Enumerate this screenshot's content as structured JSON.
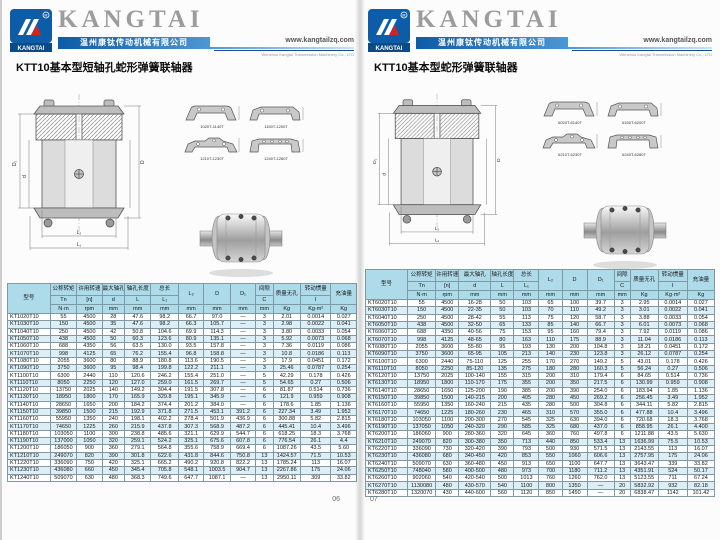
{
  "brand": {
    "logo_text": "KANGTAI",
    "name": "KANGTAI",
    "reg_mark": "®",
    "company": "温州康钛传动机械有限公司",
    "website": "www.kangtailzq.com",
    "tagline": "Wenzhou Kangtai Transmission Machinery Co., LTD",
    "blue": "#0d5ca8",
    "red": "#d42323"
  },
  "table_header": {
    "model": "型号",
    "torque": "公称转矩",
    "torque_sym": "Tn",
    "torque_unit": "N·m",
    "speed": "许用转速",
    "speed_sym": "[n]",
    "speed_unit": "rpm",
    "bore": "最大轴孔",
    "bore_sym": "d",
    "bore_unit": "mm",
    "borelen": "轴孔长度",
    "borelen_sym": "L",
    "borelen_unit": "mm",
    "total": "总长",
    "total_sym": "L₁",
    "total_unit": "mm",
    "l2_sym": "L₂",
    "l2_unit": "mm",
    "d_sym": "D",
    "d_unit": "mm",
    "d1_sym": "D₁",
    "d1_unit": "mm",
    "gap": "间隙",
    "gap_sym": "C",
    "gap_unit": "mm",
    "mass": "质量无孔",
    "mass_unit": "Kg",
    "inertia": "转动惯量",
    "inertia_sym": "I",
    "inertia_unit": "Kg·m²",
    "oil": "充油量",
    "oil_unit": "Kg"
  },
  "dims": {
    "d": "d",
    "d1": "D₁",
    "bigD": "D",
    "l1": "L₁",
    "l2": "L₂"
  },
  "pages": {
    "left": {
      "title": "KTT10基本型短轴孔蛇形弹簧联轴器",
      "page_number": "06",
      "profiles": [
        "1020T-1140T",
        "1150T-1200T",
        "1210T-1230T",
        "1240T-1260T"
      ],
      "table_rows": [
        [
          "KT1020T10",
          "55",
          "4500",
          "28",
          "47.6",
          "98.2",
          "66.7",
          "97.0",
          "—",
          "3",
          "2.01",
          "0.0014",
          "0.027"
        ],
        [
          "KT1030T10",
          "150",
          "4500",
          "35",
          "47.6",
          "98.2",
          "66.3",
          "105.7",
          "—",
          "3",
          "2.98",
          "0.0022",
          "0.041"
        ],
        [
          "KT1040T10",
          "250",
          "4500",
          "42",
          "50.8",
          "104.6",
          "69.9",
          "114.3",
          "—",
          "3",
          "3.80",
          "0.0033",
          "0.054"
        ],
        [
          "KT1050T10",
          "438",
          "4500",
          "50",
          "60.3",
          "123.6",
          "80.9",
          "135.1",
          "—",
          "3",
          "5.92",
          "0.0073",
          "0.068"
        ],
        [
          "KT1060T10",
          "688",
          "4350",
          "56",
          "63.5",
          "130.0",
          "93.5",
          "157.8",
          "—",
          "3",
          "7.36",
          "0.0119",
          "0.086"
        ],
        [
          "KT1070T10",
          "998",
          "4125",
          "65",
          "76.2",
          "155.4",
          "96.8",
          "158.8",
          "—",
          "3",
          "10.8",
          "0.0186",
          "0.113"
        ],
        [
          "KT1080T10",
          "2055",
          "3600",
          "80",
          "88.9",
          "180.8",
          "113.6",
          "190.5",
          "—",
          "3",
          "17.9",
          "0.0451",
          "0.172"
        ],
        [
          "KT1090T10",
          "3750",
          "3600",
          "95",
          "98.4",
          "199.8",
          "122.2",
          "211.1",
          "—",
          "3",
          "25.46",
          "0.0787",
          "0.254"
        ],
        [
          "KT1100T10",
          "6300",
          "2440",
          "110",
          "120.6",
          "246.2",
          "155.4",
          "251.0",
          "—",
          "5",
          "42.29",
          "0.178",
          "0.426"
        ],
        [
          "KT1110T10",
          "8050",
          "2250",
          "120",
          "127.0",
          "259.0",
          "161.5",
          "269.7",
          "—",
          "5",
          "54.65",
          "0.27",
          "0.506"
        ],
        [
          "KT1120T10",
          "13750",
          "2025",
          "140",
          "149.2",
          "304.4",
          "191.5",
          "307.8",
          "—",
          "6",
          "81.87",
          "0.514",
          "0.736"
        ],
        [
          "KT1130T10",
          "18950",
          "1800",
          "170",
          "165.9",
          "329.8",
          "195.1",
          "345.9",
          "—",
          "6",
          "121.9",
          "0.959",
          "0.908"
        ],
        [
          "KT1140T10",
          "28650",
          "1650",
          "200",
          "184.2",
          "374.4",
          "201.2",
          "384.0",
          "—",
          "6",
          "178.6",
          "1.85",
          "1.136"
        ],
        [
          "KT1150T10",
          "39850",
          "1500",
          "215",
          "192.9",
          "371.8",
          "271.5",
          "453.1",
          "391.2",
          "6",
          "227.34",
          "3.49",
          "1.952"
        ],
        [
          "KT1160T10",
          "55950",
          "1350",
          "240",
          "198.1",
          "402.2",
          "278.4",
          "501.9",
          "436.9",
          "6",
          "300.88",
          "5.82",
          "2.815"
        ],
        [
          "KT1170T10",
          "74650",
          "1225",
          "260",
          "215.9",
          "437.8",
          "307.3",
          "568.9",
          "487.2",
          "6",
          "445.41",
          "10.4",
          "3.496"
        ],
        [
          "KT1180T10",
          "103050",
          "1100",
          "300",
          "238.8",
          "485.6",
          "321.1",
          "629.9",
          "544.7",
          "6",
          "618.25",
          "18.3",
          "3.768"
        ],
        [
          "KT1190T10",
          "137000",
          "1050",
          "320",
          "259.1",
          "524.2",
          "325.1",
          "675.6",
          "607.8",
          "6",
          "776.54",
          "26.1",
          "4.4"
        ],
        [
          "KT1200T10",
          "186050",
          "900",
          "360",
          "279.1",
          "564.8",
          "355.6",
          "758.9",
          "669.4",
          "6",
          "1087.26",
          "43.5",
          "5.60"
        ],
        [
          "KT1210T10",
          "249070",
          "820",
          "390",
          "301.8",
          "622.6",
          "431.8",
          "844.6",
          "750.8",
          "13",
          "1424.57",
          "71.5",
          "10.53"
        ],
        [
          "KT1220T10",
          "336090",
          "750",
          "420",
          "325.1",
          "665.2",
          "490.2",
          "920.8",
          "822.2",
          "13",
          "1785.24",
          "113",
          "16.07"
        ],
        [
          "KT1230T10",
          "436080",
          "660",
          "450",
          "345.4",
          "705.8",
          "548.1",
          "1003.5",
          "904.7",
          "13",
          "2267.86",
          "175",
          "24.06"
        ],
        [
          "KT1240T10",
          "509070",
          "630",
          "480",
          "368.3",
          "749.6",
          "647.7",
          "1087.1",
          "—",
          "13",
          "2950.11",
          "309",
          "33.82"
        ]
      ]
    },
    "right": {
      "title": "KTT10基本型蛇形弹簧联轴器",
      "page_number": "07",
      "profiles": [
        "6020T-6140T",
        "6150T-6200T",
        "6210T-6230T",
        "6240T-6280T"
      ],
      "table_rows": [
        [
          "KT6020T10",
          "55",
          "4500",
          "16-28",
          "50",
          "103",
          "65",
          "100",
          "39.7",
          "3",
          "2.95",
          "0.0014",
          "0.027"
        ],
        [
          "KT6030T10",
          "150",
          "4500",
          "22-35",
          "50",
          "103",
          "70",
          "110",
          "49.2",
          "3",
          "3.01",
          "0.0022",
          "0.041"
        ],
        [
          "KT6040T10",
          "250",
          "4500",
          "28-42",
          "55",
          "113",
          "75",
          "120",
          "58.7",
          "3",
          "3.88",
          "0.0033",
          "0.054"
        ],
        [
          "KT6050T10",
          "438",
          "4500",
          "32-50",
          "65",
          "133",
          "85",
          "140",
          "66.7",
          "3",
          "6.01",
          "0.0073",
          "0.068"
        ],
        [
          "KT6060T10",
          "688",
          "4350",
          "40-56",
          "75",
          "153",
          "95",
          "160",
          "79.4",
          "3",
          "7.92",
          "0.0119",
          "0.086"
        ],
        [
          "KT6070T10",
          "998",
          "4125",
          "48-65",
          "80",
          "163",
          "110",
          "175",
          "88.9",
          "3",
          "11.04",
          "0.0186",
          "0.113"
        ],
        [
          "KT6080T10",
          "2055",
          "3600",
          "55-80",
          "95",
          "193",
          "130",
          "200",
          "104.8",
          "3",
          "18.21",
          "0.0451",
          "0.172"
        ],
        [
          "KT6090T10",
          "3750",
          "3600",
          "65-95",
          "105",
          "213",
          "140",
          "230",
          "123.8",
          "3",
          "26.12",
          "0.0787",
          "0.254"
        ],
        [
          "KT6100T10",
          "6300",
          "2440",
          "75-110",
          "125",
          "255",
          "170",
          "270",
          "149.2",
          "5",
          "43.01",
          "0.178",
          "0.426"
        ],
        [
          "KT6110T10",
          "8050",
          "2250",
          "85-120",
          "135",
          "275",
          "180",
          "280",
          "160.3",
          "5",
          "56.24",
          "0.27",
          "0.506"
        ],
        [
          "KT6120T10",
          "13750",
          "2025",
          "100-140",
          "155",
          "315",
          "200",
          "310",
          "179.4",
          "6",
          "84.65",
          "0.514",
          "0.736"
        ],
        [
          "KT6130T10",
          "18950",
          "1800",
          "110-170",
          "175",
          "355",
          "200",
          "350",
          "217.5",
          "6",
          "130.99",
          "0.959",
          "0.908"
        ],
        [
          "KT6140T10",
          "28650",
          "1650",
          "125-200",
          "190",
          "385",
          "200",
          "390",
          "254.0",
          "6",
          "183.94",
          "1.85",
          "1.136"
        ],
        [
          "KT6150T10",
          "39850",
          "1500",
          "140-215",
          "200",
          "405",
          "280",
          "450",
          "269.2",
          "6",
          "256.45",
          "3.49",
          "1.952"
        ],
        [
          "KT6160T10",
          "55950",
          "1350",
          "160-240",
          "215",
          "435",
          "280",
          "500",
          "304.8",
          "6",
          "344.11",
          "5.82",
          "2.815"
        ],
        [
          "KT6170T10",
          "74650",
          "1225",
          "180-260",
          "230",
          "465",
          "310",
          "570",
          "355.0",
          "6",
          "477.88",
          "10.4",
          "3.496"
        ],
        [
          "KT6180T10",
          "103050",
          "1100",
          "200-300",
          "270",
          "545",
          "325",
          "630",
          "394.0",
          "6",
          "720.68",
          "18.3",
          "3.768"
        ],
        [
          "KT6190T10",
          "137050",
          "1050",
          "240-320",
          "290",
          "585",
          "325",
          "680",
          "437.0",
          "6",
          "858.95",
          "26.1",
          "4.400"
        ],
        [
          "KT6200T10",
          "186060",
          "900",
          "280-360",
          "320",
          "645",
          "360",
          "760",
          "497.8",
          "6",
          "1211.88",
          "43.5",
          "5.630"
        ],
        [
          "KT6210T10",
          "249070",
          "820",
          "300-380",
          "350",
          "713",
          "440",
          "850",
          "533.4",
          "13",
          "1636.99",
          "75.5",
          "10.53"
        ],
        [
          "KT6220T10",
          "336090",
          "730",
          "320-420",
          "390",
          "793",
          "500",
          "930",
          "571.5",
          "13",
          "2143.55",
          "113",
          "16.07"
        ],
        [
          "KT6230T10",
          "436080",
          "680",
          "340-450",
          "420",
          "853",
          "550",
          "1060",
          "606.6",
          "13",
          "2757.95",
          "175",
          "24.06"
        ],
        [
          "KT6240T10",
          "509070",
          "630",
          "360-480",
          "450",
          "913",
          "650",
          "1100",
          "647.7",
          "13",
          "3643.47",
          "339",
          "33.82"
        ],
        [
          "KT6250T10",
          "748040",
          "580",
          "400-500",
          "480",
          "973",
          "700",
          "1180",
          "711.2",
          "13",
          "4351.91",
          "524",
          "50.17"
        ],
        [
          "KT6260T10",
          "902060",
          "540",
          "420-540",
          "500",
          "1013",
          "760",
          "1260",
          "762.0",
          "13",
          "5123.55",
          "711",
          "67.24"
        ],
        [
          "KT6270T10",
          "1130080",
          "480",
          "430-570",
          "540",
          "1100",
          "800",
          "1350",
          "—",
          "20",
          "5832.92",
          "932",
          "82.18"
        ],
        [
          "KT6280T10",
          "1320070",
          "430",
          "440-600",
          "560",
          "1120",
          "850",
          "1450",
          "—",
          "20",
          "6838.47",
          "1142",
          "101.42"
        ]
      ]
    }
  }
}
